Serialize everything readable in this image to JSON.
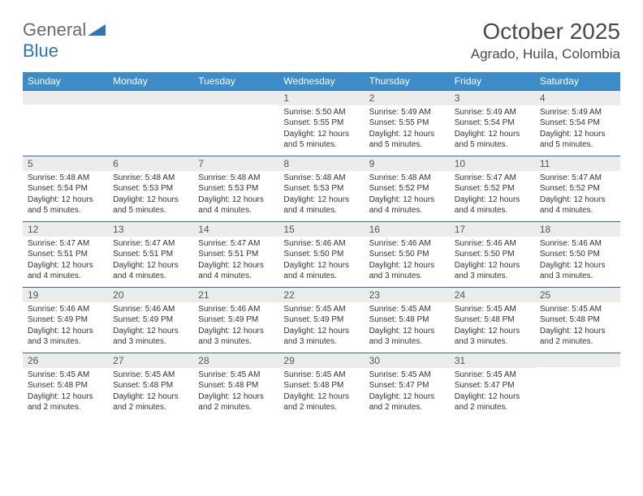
{
  "brand": {
    "name1": "General",
    "name2": "Blue"
  },
  "title": "October 2025",
  "location": "Agrado, Huila, Colombia",
  "colors": {
    "header_bg": "#3c8cc9",
    "border": "#2e6da8",
    "band": "#ececec",
    "text": "#333333",
    "brand_gray": "#6b6b6b",
    "brand_blue": "#2e75b6"
  },
  "day_names": [
    "Sunday",
    "Monday",
    "Tuesday",
    "Wednesday",
    "Thursday",
    "Friday",
    "Saturday"
  ],
  "weeks": [
    [
      {
        "n": "",
        "sr": "",
        "ss": "",
        "dl": ""
      },
      {
        "n": "",
        "sr": "",
        "ss": "",
        "dl": ""
      },
      {
        "n": "",
        "sr": "",
        "ss": "",
        "dl": ""
      },
      {
        "n": "1",
        "sr": "Sunrise: 5:50 AM",
        "ss": "Sunset: 5:55 PM",
        "dl": "Daylight: 12 hours and 5 minutes."
      },
      {
        "n": "2",
        "sr": "Sunrise: 5:49 AM",
        "ss": "Sunset: 5:55 PM",
        "dl": "Daylight: 12 hours and 5 minutes."
      },
      {
        "n": "3",
        "sr": "Sunrise: 5:49 AM",
        "ss": "Sunset: 5:54 PM",
        "dl": "Daylight: 12 hours and 5 minutes."
      },
      {
        "n": "4",
        "sr": "Sunrise: 5:49 AM",
        "ss": "Sunset: 5:54 PM",
        "dl": "Daylight: 12 hours and 5 minutes."
      }
    ],
    [
      {
        "n": "5",
        "sr": "Sunrise: 5:48 AM",
        "ss": "Sunset: 5:54 PM",
        "dl": "Daylight: 12 hours and 5 minutes."
      },
      {
        "n": "6",
        "sr": "Sunrise: 5:48 AM",
        "ss": "Sunset: 5:53 PM",
        "dl": "Daylight: 12 hours and 5 minutes."
      },
      {
        "n": "7",
        "sr": "Sunrise: 5:48 AM",
        "ss": "Sunset: 5:53 PM",
        "dl": "Daylight: 12 hours and 4 minutes."
      },
      {
        "n": "8",
        "sr": "Sunrise: 5:48 AM",
        "ss": "Sunset: 5:53 PM",
        "dl": "Daylight: 12 hours and 4 minutes."
      },
      {
        "n": "9",
        "sr": "Sunrise: 5:48 AM",
        "ss": "Sunset: 5:52 PM",
        "dl": "Daylight: 12 hours and 4 minutes."
      },
      {
        "n": "10",
        "sr": "Sunrise: 5:47 AM",
        "ss": "Sunset: 5:52 PM",
        "dl": "Daylight: 12 hours and 4 minutes."
      },
      {
        "n": "11",
        "sr": "Sunrise: 5:47 AM",
        "ss": "Sunset: 5:52 PM",
        "dl": "Daylight: 12 hours and 4 minutes."
      }
    ],
    [
      {
        "n": "12",
        "sr": "Sunrise: 5:47 AM",
        "ss": "Sunset: 5:51 PM",
        "dl": "Daylight: 12 hours and 4 minutes."
      },
      {
        "n": "13",
        "sr": "Sunrise: 5:47 AM",
        "ss": "Sunset: 5:51 PM",
        "dl": "Daylight: 12 hours and 4 minutes."
      },
      {
        "n": "14",
        "sr": "Sunrise: 5:47 AM",
        "ss": "Sunset: 5:51 PM",
        "dl": "Daylight: 12 hours and 4 minutes."
      },
      {
        "n": "15",
        "sr": "Sunrise: 5:46 AM",
        "ss": "Sunset: 5:50 PM",
        "dl": "Daylight: 12 hours and 4 minutes."
      },
      {
        "n": "16",
        "sr": "Sunrise: 5:46 AM",
        "ss": "Sunset: 5:50 PM",
        "dl": "Daylight: 12 hours and 3 minutes."
      },
      {
        "n": "17",
        "sr": "Sunrise: 5:46 AM",
        "ss": "Sunset: 5:50 PM",
        "dl": "Daylight: 12 hours and 3 minutes."
      },
      {
        "n": "18",
        "sr": "Sunrise: 5:46 AM",
        "ss": "Sunset: 5:50 PM",
        "dl": "Daylight: 12 hours and 3 minutes."
      }
    ],
    [
      {
        "n": "19",
        "sr": "Sunrise: 5:46 AM",
        "ss": "Sunset: 5:49 PM",
        "dl": "Daylight: 12 hours and 3 minutes."
      },
      {
        "n": "20",
        "sr": "Sunrise: 5:46 AM",
        "ss": "Sunset: 5:49 PM",
        "dl": "Daylight: 12 hours and 3 minutes."
      },
      {
        "n": "21",
        "sr": "Sunrise: 5:46 AM",
        "ss": "Sunset: 5:49 PM",
        "dl": "Daylight: 12 hours and 3 minutes."
      },
      {
        "n": "22",
        "sr": "Sunrise: 5:45 AM",
        "ss": "Sunset: 5:49 PM",
        "dl": "Daylight: 12 hours and 3 minutes."
      },
      {
        "n": "23",
        "sr": "Sunrise: 5:45 AM",
        "ss": "Sunset: 5:48 PM",
        "dl": "Daylight: 12 hours and 3 minutes."
      },
      {
        "n": "24",
        "sr": "Sunrise: 5:45 AM",
        "ss": "Sunset: 5:48 PM",
        "dl": "Daylight: 12 hours and 3 minutes."
      },
      {
        "n": "25",
        "sr": "Sunrise: 5:45 AM",
        "ss": "Sunset: 5:48 PM",
        "dl": "Daylight: 12 hours and 2 minutes."
      }
    ],
    [
      {
        "n": "26",
        "sr": "Sunrise: 5:45 AM",
        "ss": "Sunset: 5:48 PM",
        "dl": "Daylight: 12 hours and 2 minutes."
      },
      {
        "n": "27",
        "sr": "Sunrise: 5:45 AM",
        "ss": "Sunset: 5:48 PM",
        "dl": "Daylight: 12 hours and 2 minutes."
      },
      {
        "n": "28",
        "sr": "Sunrise: 5:45 AM",
        "ss": "Sunset: 5:48 PM",
        "dl": "Daylight: 12 hours and 2 minutes."
      },
      {
        "n": "29",
        "sr": "Sunrise: 5:45 AM",
        "ss": "Sunset: 5:48 PM",
        "dl": "Daylight: 12 hours and 2 minutes."
      },
      {
        "n": "30",
        "sr": "Sunrise: 5:45 AM",
        "ss": "Sunset: 5:47 PM",
        "dl": "Daylight: 12 hours and 2 minutes."
      },
      {
        "n": "31",
        "sr": "Sunrise: 5:45 AM",
        "ss": "Sunset: 5:47 PM",
        "dl": "Daylight: 12 hours and 2 minutes."
      },
      {
        "n": "",
        "sr": "",
        "ss": "",
        "dl": ""
      }
    ]
  ]
}
